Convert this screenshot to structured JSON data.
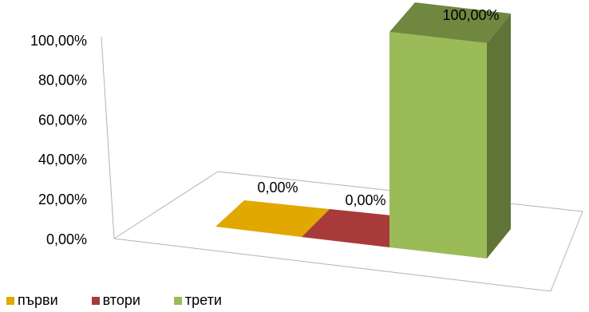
{
  "chart_data": {
    "type": "bar",
    "categories": [
      "първи",
      "втори",
      "трети"
    ],
    "values": [
      0,
      0,
      100
    ],
    "value_labels": [
      "0,00%",
      "0,00%",
      "100,00%"
    ],
    "y_tick_labels": [
      "0,00%",
      "20,00%",
      "40,00%",
      "60,00%",
      "80,00%",
      "100,00%"
    ],
    "ylim": [
      0,
      100
    ],
    "colors": [
      "#E0A800",
      "#A83A3A",
      "#9BBB59"
    ],
    "legend_position": "bottom-left",
    "style": "3d-column",
    "grid": false
  }
}
